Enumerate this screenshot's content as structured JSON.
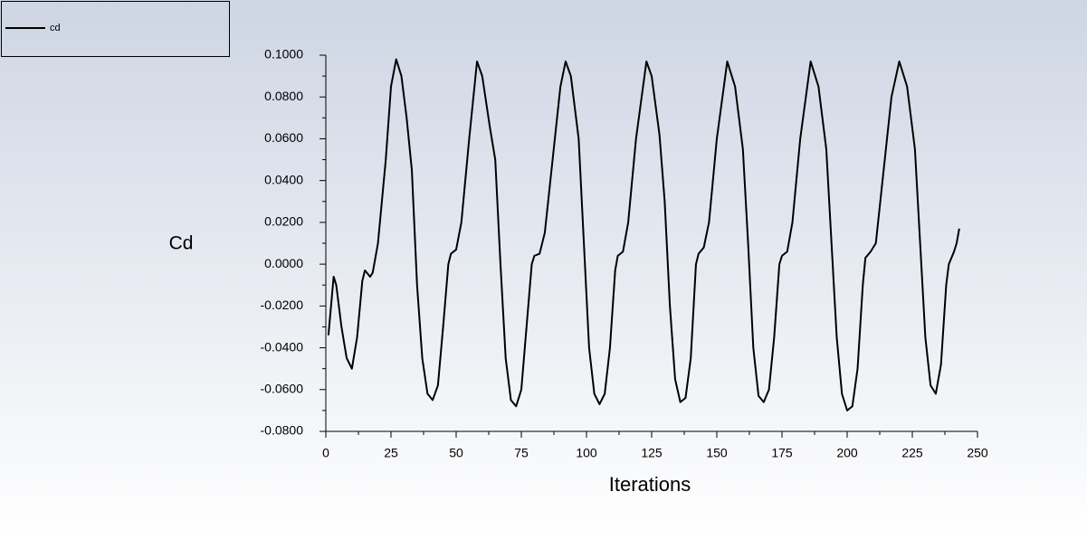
{
  "chart_data": {
    "type": "line",
    "xlabel": "Iterations",
    "ylabel": "Cd",
    "x": [
      1,
      3,
      4,
      6,
      8,
      10,
      12,
      14,
      15,
      17,
      18,
      20,
      23,
      25,
      27,
      29,
      31,
      33,
      35,
      37,
      39,
      41,
      43,
      45,
      47,
      48,
      50,
      52,
      55,
      58,
      60,
      63,
      65,
      67,
      69,
      71,
      73,
      75,
      77,
      79,
      80,
      82,
      84,
      87,
      90,
      92,
      94,
      97,
      99,
      101,
      103,
      105,
      107,
      109,
      111,
      112,
      114,
      116,
      119,
      123,
      125,
      128,
      130,
      132,
      134,
      136,
      138,
      140,
      142,
      143,
      145,
      147,
      150,
      154,
      157,
      160,
      162,
      164,
      166,
      168,
      170,
      172,
      174,
      175,
      177,
      179,
      182,
      186,
      189,
      192,
      194,
      196,
      198,
      200,
      202,
      204,
      206,
      207,
      209,
      211,
      214,
      217,
      220,
      223,
      226,
      228,
      230,
      232,
      234,
      236,
      238,
      239,
      241,
      242,
      243
    ],
    "series": [
      {
        "name": "cd",
        "color": "#000000",
        "values": [
          -0.034,
          -0.006,
          -0.01,
          -0.03,
          -0.045,
          -0.05,
          -0.035,
          -0.008,
          -0.003,
          -0.006,
          -0.004,
          0.01,
          0.05,
          0.085,
          0.098,
          0.09,
          0.07,
          0.045,
          -0.01,
          -0.045,
          -0.062,
          -0.065,
          -0.058,
          -0.03,
          0.0,
          0.005,
          0.007,
          0.02,
          0.06,
          0.097,
          0.09,
          0.065,
          0.05,
          0.0,
          -0.045,
          -0.065,
          -0.068,
          -0.06,
          -0.03,
          0.0,
          0.004,
          0.005,
          0.015,
          0.05,
          0.085,
          0.097,
          0.09,
          0.06,
          0.01,
          -0.04,
          -0.062,
          -0.067,
          -0.062,
          -0.04,
          -0.003,
          0.004,
          0.006,
          0.02,
          0.06,
          0.097,
          0.09,
          0.062,
          0.03,
          -0.02,
          -0.055,
          -0.066,
          -0.064,
          -0.045,
          0.0,
          0.005,
          0.008,
          0.02,
          0.06,
          0.097,
          0.085,
          0.055,
          0.01,
          -0.04,
          -0.063,
          -0.066,
          -0.06,
          -0.035,
          0.0,
          0.004,
          0.006,
          0.02,
          0.06,
          0.097,
          0.085,
          0.055,
          0.01,
          -0.035,
          -0.062,
          -0.07,
          -0.068,
          -0.05,
          -0.01,
          0.003,
          0.006,
          0.01,
          0.045,
          0.08,
          0.097,
          0.085,
          0.055,
          0.01,
          -0.035,
          -0.058,
          -0.062,
          -0.048,
          -0.01,
          0.0,
          0.006,
          0.01,
          0.017
        ]
      }
    ],
    "xlim": [
      0,
      250
    ],
    "xticks": [
      0,
      25,
      50,
      75,
      100,
      125,
      150,
      175,
      200,
      225,
      250
    ],
    "ylim": [
      -0.08,
      0.1
    ],
    "yticks": [
      {
        "value": -0.08,
        "label": "-0.0800"
      },
      {
        "value": -0.06,
        "label": "-0.0600"
      },
      {
        "value": -0.04,
        "label": "-0.0400"
      },
      {
        "value": -0.02,
        "label": "-0.0200"
      },
      {
        "value": 0,
        "label": "0.0000"
      },
      {
        "value": 0.02,
        "label": "0.0200"
      },
      {
        "value": 0.04,
        "label": "0.0400"
      },
      {
        "value": 0.06,
        "label": "0.0600"
      },
      {
        "value": 0.08,
        "label": "0.0800"
      },
      {
        "value": 0.1,
        "label": "0.1000"
      }
    ],
    "legend": "top-left"
  }
}
